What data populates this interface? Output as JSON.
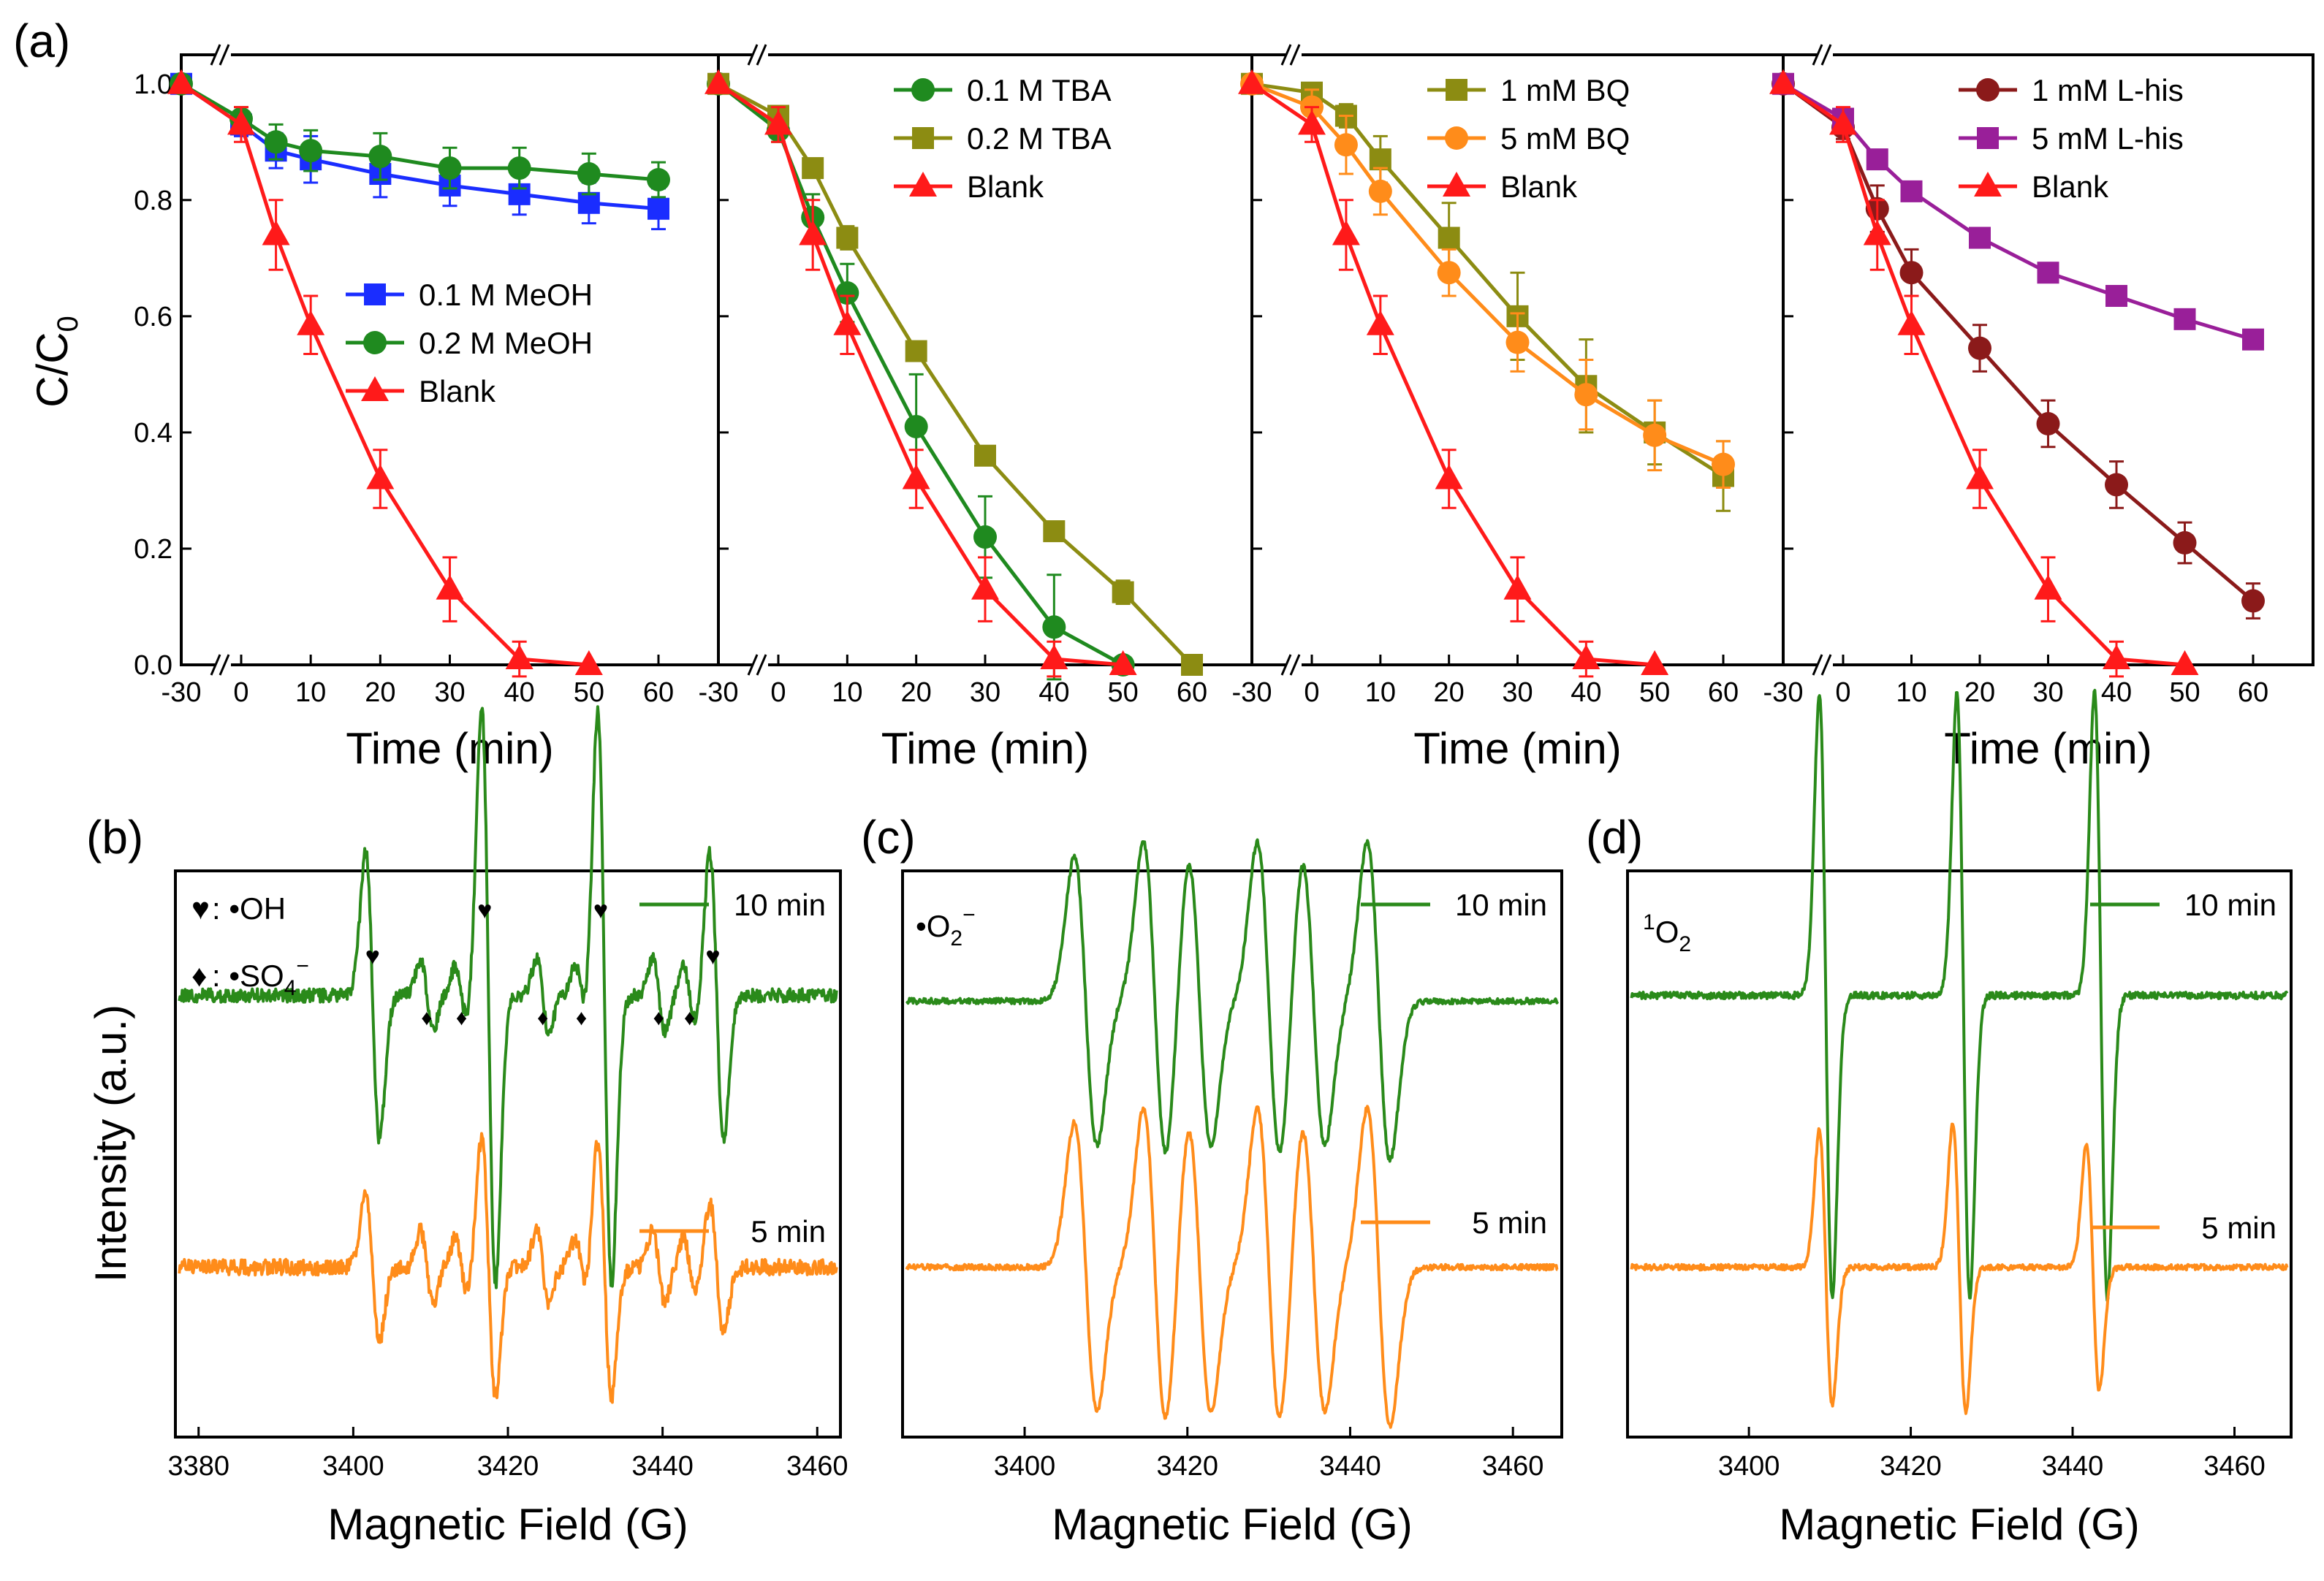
{
  "panel_labels": [
    "(a)",
    "(b)",
    "(c)",
    "(d)"
  ],
  "colors": {
    "blank": "#ff1a1a",
    "meoh_01": "#1a2dff",
    "meoh_02": "#1f8a1f",
    "tba_01": "#1f8a1f",
    "tba_02": "#8c8c12",
    "bq_1": "#8c8c12",
    "bq_5": "#ff8c1a",
    "lhis_1": "#8b1a1a",
    "lhis_5": "#991f99",
    "epr_10min": "#2a8a1a",
    "epr_5min": "#ff8c1a"
  },
  "chart_data": [
    {
      "type": "line",
      "panel": "(a)",
      "subpanel": 1,
      "xlabel": "Time (min)",
      "ylabel": "C/C0",
      "ylabel_main": "C/C",
      "ylabel_sub": "0",
      "xticks": [
        "-30",
        "0",
        "10",
        "20",
        "30",
        "40",
        "50",
        "60"
      ],
      "yticks": [
        "0.0",
        "0.2",
        "0.4",
        "0.6",
        "0.8",
        "1.0"
      ],
      "ylim": [
        0,
        1.05
      ],
      "legend_position": "center-right",
      "x": [
        -30,
        0,
        5,
        10,
        20,
        30,
        40,
        50,
        60
      ],
      "series": [
        {
          "name": "0.1 M MeOH",
          "color_key": "meoh_01",
          "marker": "square",
          "x": [
            -30,
            0,
            5,
            10,
            20,
            30,
            40,
            50,
            60
          ],
          "values": [
            1.0,
            0.93,
            0.885,
            0.87,
            0.845,
            0.825,
            0.81,
            0.795,
            0.785
          ],
          "errors": [
            0,
            0.02,
            0.03,
            0.04,
            0.04,
            0.035,
            0.035,
            0.035,
            0.035
          ]
        },
        {
          "name": "0.2 M MeOH",
          "color_key": "meoh_02",
          "marker": "circle",
          "x": [
            -30,
            0,
            5,
            10,
            20,
            30,
            40,
            50,
            60
          ],
          "values": [
            1.0,
            0.94,
            0.9,
            0.885,
            0.875,
            0.855,
            0.855,
            0.845,
            0.835
          ],
          "errors": [
            0,
            0.02,
            0.03,
            0.035,
            0.04,
            0.035,
            0.035,
            0.035,
            0.03
          ]
        },
        {
          "name": "Blank",
          "color_key": "blank",
          "marker": "triangle",
          "x": [
            -30,
            0,
            5,
            10,
            20,
            30,
            40,
            50
          ],
          "values": [
            1.0,
            0.93,
            0.74,
            0.585,
            0.32,
            0.13,
            0.01,
            0.0
          ],
          "errors": [
            0,
            0.03,
            0.06,
            0.05,
            0.05,
            0.055,
            0.03,
            0.0
          ]
        }
      ]
    },
    {
      "type": "line",
      "panel": "(a)",
      "subpanel": 2,
      "xlabel": "Time (min)",
      "xticks": [
        "-30",
        "0",
        "10",
        "20",
        "30",
        "40",
        "50",
        "60"
      ],
      "ylim": [
        0,
        1.05
      ],
      "legend_position": "top-right",
      "series": [
        {
          "name": "0.1 M TBA",
          "color_key": "tba_01",
          "marker": "circle",
          "x": [
            -30,
            0,
            5,
            10,
            20,
            30,
            40,
            50
          ],
          "values": [
            1.0,
            0.92,
            0.77,
            0.64,
            0.41,
            0.22,
            0.065,
            0.0
          ],
          "errors": [
            0,
            0.02,
            0.04,
            0.05,
            0.09,
            0.07,
            0.09,
            0.0
          ]
        },
        {
          "name": "0.2 M TBA",
          "color_key": "tba_02",
          "marker": "square",
          "x": [
            -30,
            0,
            5,
            10,
            20,
            30,
            40,
            50,
            60
          ],
          "values": [
            1.0,
            0.945,
            0.855,
            0.735,
            0.54,
            0.36,
            0.23,
            0.125,
            0.0
          ],
          "errors": [
            0,
            0.015,
            0.015,
            0.02,
            0.015,
            0.015,
            0.015,
            0.02,
            0.0
          ]
        },
        {
          "name": "Blank",
          "color_key": "blank",
          "marker": "triangle",
          "x": [
            -30,
            0,
            5,
            10,
            20,
            30,
            40,
            50
          ],
          "values": [
            1.0,
            0.93,
            0.74,
            0.585,
            0.32,
            0.13,
            0.01,
            0.0
          ],
          "errors": [
            0,
            0.03,
            0.06,
            0.05,
            0.05,
            0.055,
            0.03,
            0.0
          ]
        }
      ]
    },
    {
      "type": "line",
      "panel": "(a)",
      "subpanel": 3,
      "xlabel": "Time (min)",
      "xticks": [
        "-30",
        "0",
        "10",
        "20",
        "30",
        "40",
        "50",
        "60"
      ],
      "ylim": [
        0,
        1.05
      ],
      "legend_position": "top-right",
      "series": [
        {
          "name": "1 mM BQ",
          "color_key": "bq_1",
          "marker": "square",
          "x": [
            -30,
            0,
            5,
            10,
            20,
            30,
            40,
            50,
            60
          ],
          "values": [
            1.0,
            0.985,
            0.945,
            0.87,
            0.735,
            0.6,
            0.48,
            0.4,
            0.325
          ],
          "errors": [
            0,
            0.01,
            0.02,
            0.04,
            0.06,
            0.075,
            0.08,
            0.055,
            0.06
          ]
        },
        {
          "name": "5 mM BQ",
          "color_key": "bq_5",
          "marker": "circle",
          "x": [
            -30,
            0,
            5,
            10,
            20,
            30,
            40,
            50,
            60
          ],
          "values": [
            1.0,
            0.96,
            0.895,
            0.815,
            0.675,
            0.555,
            0.465,
            0.395,
            0.345
          ],
          "errors": [
            0,
            0.03,
            0.05,
            0.04,
            0.04,
            0.05,
            0.06,
            0.06,
            0.04
          ]
        },
        {
          "name": "Blank",
          "color_key": "blank",
          "marker": "triangle",
          "x": [
            -30,
            0,
            5,
            10,
            20,
            30,
            40,
            50
          ],
          "values": [
            1.0,
            0.93,
            0.74,
            0.585,
            0.32,
            0.13,
            0.01,
            0.0
          ],
          "errors": [
            0,
            0.03,
            0.06,
            0.05,
            0.05,
            0.055,
            0.03,
            0.0
          ]
        }
      ]
    },
    {
      "type": "line",
      "panel": "(a)",
      "subpanel": 4,
      "xlabel": "Time (min)",
      "xticks": [
        "-30",
        "0",
        "10",
        "20",
        "30",
        "40",
        "50",
        "60"
      ],
      "ylim": [
        0,
        1.05
      ],
      "legend_position": "top-right",
      "series": [
        {
          "name": "1 mM L-his",
          "color_key": "lhis_1",
          "marker": "circle",
          "x": [
            -30,
            0,
            5,
            10,
            20,
            30,
            40,
            50,
            60
          ],
          "values": [
            1.0,
            0.925,
            0.785,
            0.675,
            0.545,
            0.415,
            0.31,
            0.21,
            0.11
          ],
          "errors": [
            0,
            0.02,
            0.04,
            0.04,
            0.04,
            0.04,
            0.04,
            0.035,
            0.03
          ]
        },
        {
          "name": "5 mM L-his",
          "color_key": "lhis_5",
          "marker": "square",
          "x": [
            -30,
            0,
            5,
            10,
            20,
            30,
            40,
            50,
            60
          ],
          "values": [
            1.0,
            0.94,
            0.87,
            0.815,
            0.735,
            0.675,
            0.635,
            0.595,
            0.56
          ],
          "errors": [
            0,
            0.01,
            0.01,
            0.01,
            0.01,
            0.01,
            0.01,
            0.01,
            0.01
          ]
        },
        {
          "name": "Blank",
          "color_key": "blank",
          "marker": "triangle",
          "x": [
            -30,
            0,
            5,
            10,
            20,
            30,
            40,
            50
          ],
          "values": [
            1.0,
            0.93,
            0.74,
            0.585,
            0.32,
            0.13,
            0.01,
            0.0
          ],
          "errors": [
            0,
            0.03,
            0.06,
            0.05,
            0.05,
            0.055,
            0.03,
            0.0
          ]
        }
      ]
    },
    {
      "type": "line",
      "panel": "(b)",
      "xlabel": "Magnetic Field (G)",
      "ylabel": "Intensity (a.u.)",
      "xlim": [
        3377,
        3463
      ],
      "xticks": [
        3380,
        3400,
        3420,
        3440,
        3460
      ],
      "annotation_oh_label": "•OH",
      "annotation_so4_label": "•SO",
      "annotation_so4_sub": "4",
      "annotation_so4_sup": "−",
      "oh_marker": "♥",
      "so4_marker": "♦",
      "oh_peak_fields": [
        3402.5,
        3417,
        3432,
        3446.5
      ],
      "so4_peak_fields": [
        3409.5,
        3414,
        3424.5,
        3429.5,
        3439.5,
        3443.5
      ],
      "series": [
        {
          "name": "10 min",
          "color_key": "epr_10min",
          "baseline": 0.78,
          "noise": 0.012,
          "lines": [
            {
              "center": 3402.5,
              "width": 0.9,
              "amp": 0.2
            },
            {
              "center": 3417.5,
              "width": 0.9,
              "amp": 0.4
            },
            {
              "center": 3432.5,
              "width": 0.9,
              "amp": 0.4
            },
            {
              "center": 3447.0,
              "width": 0.9,
              "amp": 0.2
            },
            {
              "center": 3409.5,
              "width": 0.8,
              "amp": 0.05
            },
            {
              "center": 3414.0,
              "width": 0.8,
              "amp": 0.04
            },
            {
              "center": 3424.5,
              "width": 0.8,
              "amp": 0.05
            },
            {
              "center": 3429.5,
              "width": 0.8,
              "amp": 0.04
            },
            {
              "center": 3439.5,
              "width": 0.8,
              "amp": 0.05
            },
            {
              "center": 3443.5,
              "width": 0.8,
              "amp": 0.04
            }
          ]
        },
        {
          "name": "5 min",
          "color_key": "epr_5min",
          "baseline": 0.3,
          "noise": 0.014,
          "lines": [
            {
              "center": 3402.5,
              "width": 0.9,
              "amp": 0.1
            },
            {
              "center": 3417.5,
              "width": 0.9,
              "amp": 0.18
            },
            {
              "center": 3432.5,
              "width": 0.9,
              "amp": 0.18
            },
            {
              "center": 3447.0,
              "width": 0.9,
              "amp": 0.09
            },
            {
              "center": 3409.5,
              "width": 0.8,
              "amp": 0.05
            },
            {
              "center": 3414.0,
              "width": 0.8,
              "amp": 0.04
            },
            {
              "center": 3424.5,
              "width": 0.8,
              "amp": 0.05
            },
            {
              "center": 3429.5,
              "width": 0.8,
              "amp": 0.04
            },
            {
              "center": 3439.5,
              "width": 0.8,
              "amp": 0.05
            },
            {
              "center": 3443.5,
              "width": 0.8,
              "amp": 0.04
            }
          ]
        }
      ]
    },
    {
      "type": "line",
      "panel": "(c)",
      "xlabel": "Magnetic Field (G)",
      "xlim": [
        3385,
        3466
      ],
      "xticks": [
        3400,
        3420,
        3440,
        3460
      ],
      "annotation_label": "•O",
      "annotation_sub": "2",
      "annotation_sup": "−",
      "series": [
        {
          "name": "10 min",
          "color_key": "epr_10min",
          "baseline": 0.77,
          "noise": 0.005,
          "lines": [
            {
              "center": 3407.5,
              "width": 1.4,
              "amp": 0.2
            },
            {
              "center": 3416.0,
              "width": 1.4,
              "amp": 0.22
            },
            {
              "center": 3421.5,
              "width": 1.4,
              "amp": 0.2
            },
            {
              "center": 3430.0,
              "width": 1.4,
              "amp": 0.22
            },
            {
              "center": 3435.5,
              "width": 1.4,
              "amp": 0.2
            },
            {
              "center": 3443.5,
              "width": 1.4,
              "amp": 0.22
            }
          ]
        },
        {
          "name": "5 min",
          "color_key": "epr_5min",
          "baseline": 0.3,
          "noise": 0.005,
          "lines": [
            {
              "center": 3407.5,
              "width": 1.4,
              "amp": 0.2
            },
            {
              "center": 3416.0,
              "width": 1.4,
              "amp": 0.22
            },
            {
              "center": 3421.5,
              "width": 1.4,
              "amp": 0.2
            },
            {
              "center": 3430.0,
              "width": 1.4,
              "amp": 0.22
            },
            {
              "center": 3435.5,
              "width": 1.4,
              "amp": 0.2
            },
            {
              "center": 3443.5,
              "width": 1.4,
              "amp": 0.22
            }
          ]
        }
      ]
    },
    {
      "type": "line",
      "panel": "(d)",
      "xlabel": "Magnetic Field (G)",
      "xlim": [
        3385,
        3467
      ],
      "xticks": [
        3400,
        3420,
        3440,
        3460
      ],
      "annotation_label": "O",
      "annotation_sup": "1",
      "annotation_sub": "2",
      "series": [
        {
          "name": "10 min",
          "color_key": "epr_10min",
          "baseline": 0.78,
          "noise": 0.006,
          "lines": [
            {
              "center": 3409.5,
              "width": 0.8,
              "amp": 0.42
            },
            {
              "center": 3426.5,
              "width": 0.8,
              "amp": 0.42
            },
            {
              "center": 3443.5,
              "width": 0.8,
              "amp": 0.42
            }
          ]
        },
        {
          "name": "5 min",
          "color_key": "epr_5min",
          "baseline": 0.3,
          "noise": 0.005,
          "lines": [
            {
              "center": 3409.5,
              "width": 0.8,
              "amp": 0.19
            },
            {
              "center": 3426.0,
              "width": 0.8,
              "amp": 0.2
            },
            {
              "center": 3442.5,
              "width": 0.8,
              "amp": 0.17
            }
          ]
        }
      ]
    }
  ]
}
